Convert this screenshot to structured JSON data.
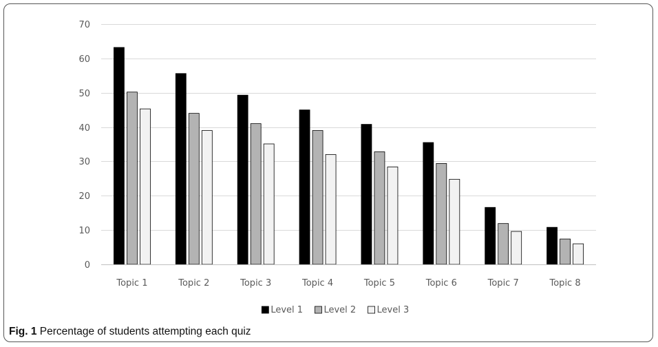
{
  "caption": {
    "label": "Fig. 1",
    "text": "Percentage of students attempting each quiz"
  },
  "chart_data": {
    "type": "bar",
    "title": "",
    "xlabel": "",
    "ylabel": "",
    "ylim": [
      0,
      70
    ],
    "yticks": [
      0,
      10,
      20,
      30,
      40,
      50,
      60,
      70
    ],
    "grid": true,
    "legend_position": "bottom",
    "categories": [
      "Topic 1",
      "Topic 2",
      "Topic 3",
      "Topic 4",
      "Topic 5",
      "Topic 6",
      "Topic 7",
      "Topic 8"
    ],
    "series": [
      {
        "name": "Level 1",
        "color": "#000000",
        "values": [
          63.2,
          55.6,
          49.3,
          45.0,
          40.8,
          35.5,
          16.6,
          10.8
        ]
      },
      {
        "name": "Level 2",
        "color": "#b3b3b3",
        "values": [
          50.2,
          44.0,
          41.0,
          39.0,
          32.8,
          29.4,
          11.9,
          7.4
        ]
      },
      {
        "name": "Level 3",
        "color": "#f2f2f2",
        "values": [
          45.3,
          39.0,
          35.1,
          32.0,
          28.4,
          24.8,
          9.6,
          6.0
        ]
      }
    ]
  }
}
